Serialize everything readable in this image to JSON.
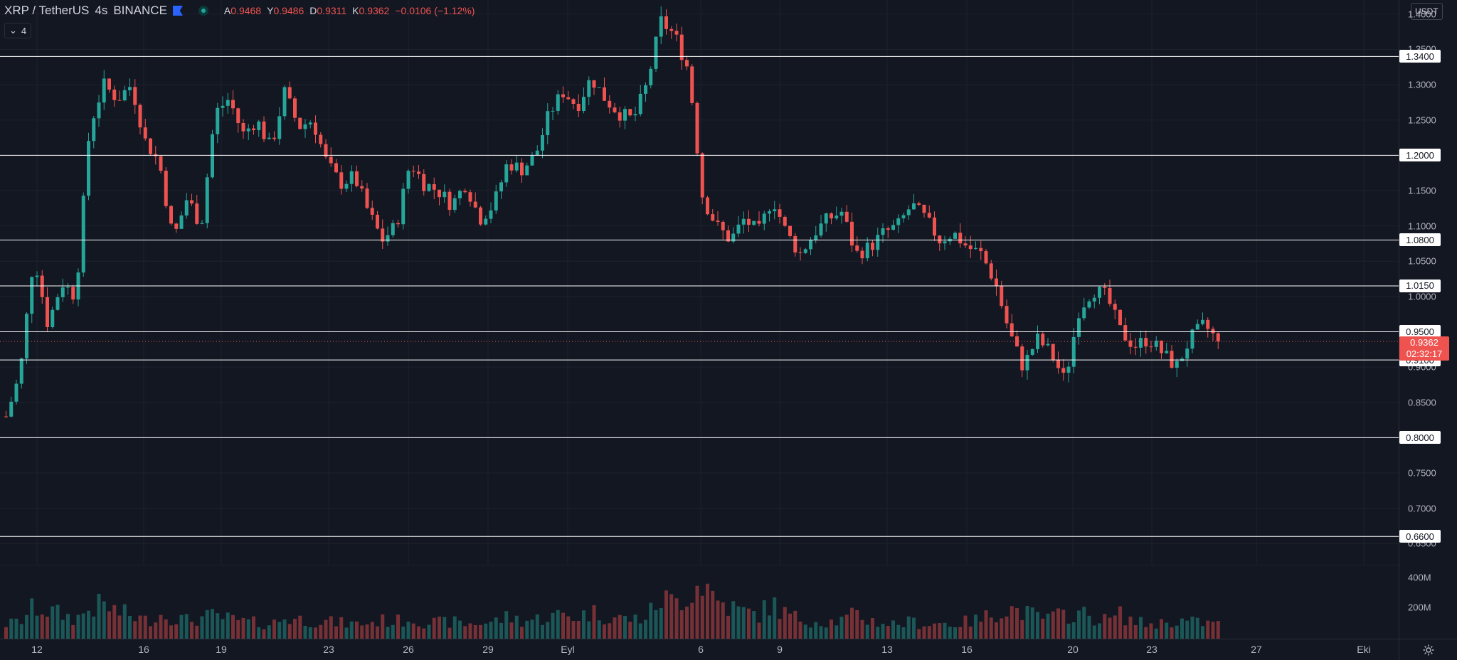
{
  "header": {
    "symbol": "XRP / TetherUS",
    "interval": "4s",
    "exchange": "BINANCE",
    "ohlc": [
      {
        "k": "A",
        "v": "0.9468"
      },
      {
        "k": "Y",
        "v": "0.9486"
      },
      {
        "k": "D",
        "v": "0.9311"
      },
      {
        "k": "K",
        "v": "0.9362"
      }
    ],
    "change": "−0.0106 (−1.12%)",
    "indicator_count": "4",
    "currency": "USDT"
  },
  "colors": {
    "background": "#131722",
    "up": "#26a69a",
    "down": "#ef5350",
    "hline": "#ffffff",
    "grid": "#1e222d"
  },
  "price_axis": {
    "ticks": [
      "1.4000",
      "1.3500",
      "1.3000",
      "1.2500",
      "1.2000",
      "1.1500",
      "1.1000",
      "1.0500",
      "1.0000",
      "0.9500",
      "0.9000",
      "0.8500",
      "0.8000",
      "0.7500",
      "0.7000",
      "0.6500"
    ],
    "level_labels": [
      "1.3400",
      "1.2000",
      "1.0800",
      "1.0150",
      "0.9500",
      "0.9100",
      "0.8000",
      "0.6600"
    ],
    "last_price": "0.9362",
    "countdown": "02:32:17"
  },
  "volume_axis": {
    "ticks": [
      "400M",
      "200M"
    ]
  },
  "time_axis": {
    "labels": [
      "12",
      "16",
      "19",
      "23",
      "26",
      "29",
      "Eyl",
      "6",
      "9",
      "13",
      "16",
      "20",
      "23",
      "27",
      "Eki"
    ]
  },
  "chart_data": {
    "type": "candlestick",
    "y_range": [
      0.62,
      1.42
    ],
    "horizontal_levels": [
      1.34,
      1.2,
      1.08,
      1.015,
      0.95,
      0.91,
      0.8,
      0.66
    ],
    "last_price": 0.9362,
    "anchors": [
      [
        0.83,
        120
      ],
      [
        0.89,
        140
      ],
      [
        1.06,
        260
      ],
      [
        0.96,
        230
      ],
      [
        1.02,
        200
      ],
      [
        1.0,
        160
      ],
      [
        1.24,
        250
      ],
      [
        1.3,
        280
      ],
      [
        1.28,
        220
      ],
      [
        1.3,
        190
      ],
      [
        1.22,
        150
      ],
      [
        1.19,
        200
      ],
      [
        1.08,
        180
      ],
      [
        1.14,
        150
      ],
      [
        1.1,
        170
      ],
      [
        1.26,
        190
      ],
      [
        1.28,
        160
      ],
      [
        1.23,
        140
      ],
      [
        1.25,
        130
      ],
      [
        1.21,
        120
      ],
      [
        1.29,
        170
      ],
      [
        1.24,
        160
      ],
      [
        1.25,
        150
      ],
      [
        1.19,
        140
      ],
      [
        1.16,
        130
      ],
      [
        1.17,
        120
      ],
      [
        1.12,
        130
      ],
      [
        1.08,
        150
      ],
      [
        1.1,
        140
      ],
      [
        1.19,
        170
      ],
      [
        1.16,
        140
      ],
      [
        1.15,
        130
      ],
      [
        1.13,
        140
      ],
      [
        1.16,
        120
      ],
      [
        1.11,
        130
      ],
      [
        1.13,
        140
      ],
      [
        1.19,
        180
      ],
      [
        1.18,
        150
      ],
      [
        1.2,
        160
      ],
      [
        1.26,
        180
      ],
      [
        1.29,
        200
      ],
      [
        1.27,
        180
      ],
      [
        1.31,
        220
      ],
      [
        1.28,
        190
      ],
      [
        1.26,
        170
      ],
      [
        1.25,
        160
      ],
      [
        1.3,
        180
      ],
      [
        1.39,
        330
      ],
      [
        1.37,
        300
      ],
      [
        1.32,
        380
      ],
      [
        1.14,
        480
      ],
      [
        1.1,
        320
      ],
      [
        1.08,
        260
      ],
      [
        1.11,
        220
      ],
      [
        1.09,
        200
      ],
      [
        1.14,
        290
      ],
      [
        1.09,
        200
      ],
      [
        1.06,
        160
      ],
      [
        1.09,
        150
      ],
      [
        1.11,
        140
      ],
      [
        1.12,
        150
      ],
      [
        1.06,
        200
      ],
      [
        1.07,
        150
      ],
      [
        1.09,
        130
      ],
      [
        1.1,
        120
      ],
      [
        1.13,
        140
      ],
      [
        1.11,
        120
      ],
      [
        1.08,
        130
      ],
      [
        1.09,
        120
      ],
      [
        1.07,
        140
      ],
      [
        1.06,
        160
      ],
      [
        1.02,
        220
      ],
      [
        0.95,
        250
      ],
      [
        0.9,
        220
      ],
      [
        0.94,
        180
      ],
      [
        0.92,
        170
      ],
      [
        0.88,
        200
      ],
      [
        0.98,
        210
      ],
      [
        1.01,
        180
      ],
      [
        1.0,
        150
      ],
      [
        0.95,
        200
      ],
      [
        0.93,
        140
      ],
      [
        0.94,
        120
      ],
      [
        0.92,
        130
      ],
      [
        0.9,
        150
      ],
      [
        0.94,
        140
      ],
      [
        0.96,
        130
      ],
      [
        0.9362,
        120
      ]
    ]
  }
}
